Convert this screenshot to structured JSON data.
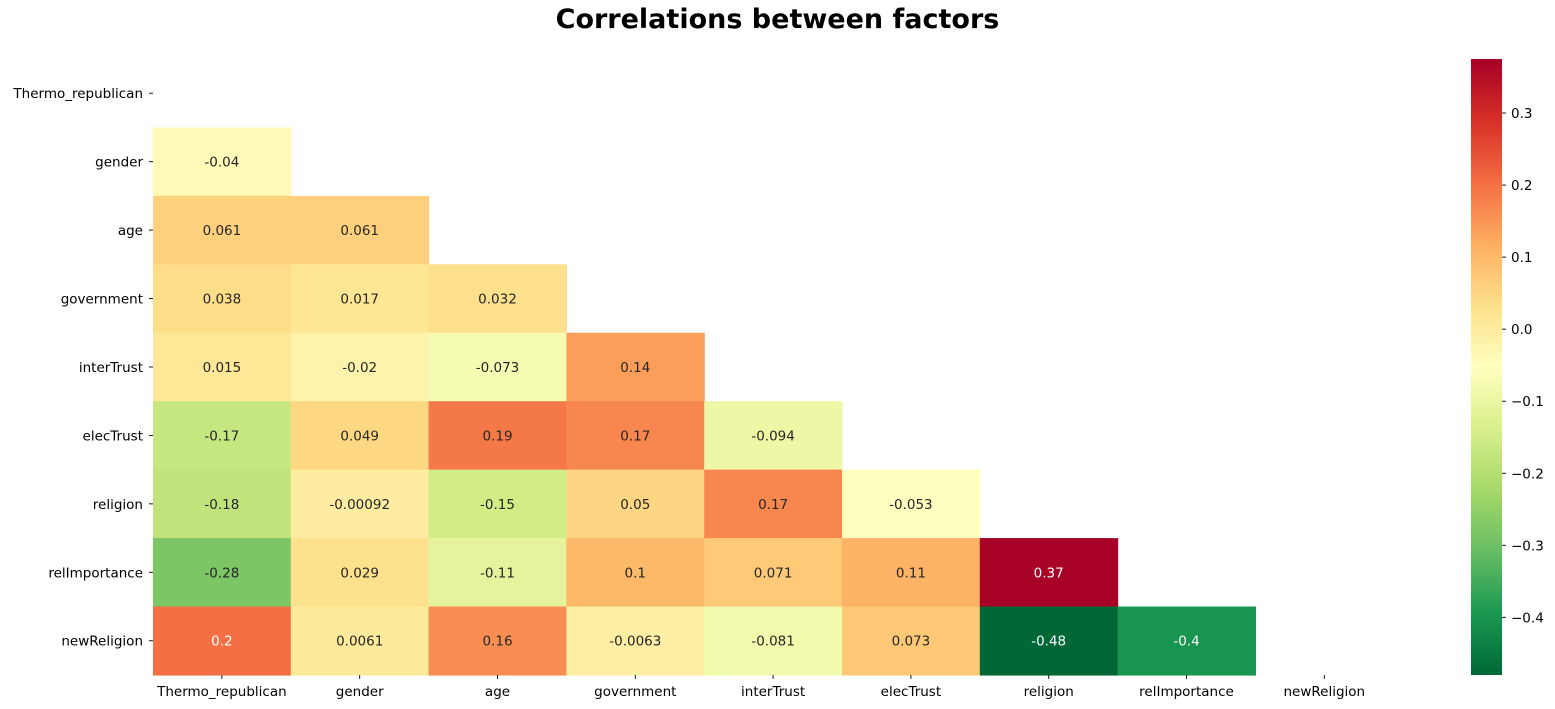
{
  "chart_data": {
    "type": "heatmap",
    "title": "Correlations between factors",
    "xlabel": "",
    "ylabel": "",
    "x_categories": [
      "Thermo_republican",
      "gender",
      "age",
      "government",
      "interTrust",
      "elecTrust",
      "religion",
      "relImportance",
      "newReligion"
    ],
    "y_categories": [
      "Thermo_republican",
      "gender",
      "age",
      "government",
      "interTrust",
      "elecTrust",
      "religion",
      "relImportance",
      "newReligion"
    ],
    "mask": "upper triangle including diagonal",
    "cells": [
      {
        "row": "gender",
        "col": "Thermo_republican",
        "value": -0.04,
        "label": "-0.04"
      },
      {
        "row": "age",
        "col": "Thermo_republican",
        "value": 0.061,
        "label": "0.061"
      },
      {
        "row": "age",
        "col": "gender",
        "value": 0.061,
        "label": "0.061"
      },
      {
        "row": "government",
        "col": "Thermo_republican",
        "value": 0.038,
        "label": "0.038"
      },
      {
        "row": "government",
        "col": "gender",
        "value": 0.017,
        "label": "0.017"
      },
      {
        "row": "government",
        "col": "age",
        "value": 0.032,
        "label": "0.032"
      },
      {
        "row": "interTrust",
        "col": "Thermo_republican",
        "value": 0.015,
        "label": "0.015"
      },
      {
        "row": "interTrust",
        "col": "gender",
        "value": -0.02,
        "label": "-0.02"
      },
      {
        "row": "interTrust",
        "col": "age",
        "value": -0.073,
        "label": "-0.073"
      },
      {
        "row": "interTrust",
        "col": "government",
        "value": 0.14,
        "label": "0.14"
      },
      {
        "row": "elecTrust",
        "col": "Thermo_republican",
        "value": -0.17,
        "label": "-0.17"
      },
      {
        "row": "elecTrust",
        "col": "gender",
        "value": 0.049,
        "label": "0.049"
      },
      {
        "row": "elecTrust",
        "col": "age",
        "value": 0.19,
        "label": "0.19"
      },
      {
        "row": "elecTrust",
        "col": "government",
        "value": 0.17,
        "label": "0.17"
      },
      {
        "row": "elecTrust",
        "col": "interTrust",
        "value": -0.094,
        "label": "-0.094"
      },
      {
        "row": "religion",
        "col": "Thermo_republican",
        "value": -0.18,
        "label": "-0.18"
      },
      {
        "row": "religion",
        "col": "gender",
        "value": -0.00092,
        "label": "-0.00092"
      },
      {
        "row": "religion",
        "col": "age",
        "value": -0.15,
        "label": "-0.15"
      },
      {
        "row": "religion",
        "col": "government",
        "value": 0.05,
        "label": "0.05"
      },
      {
        "row": "religion",
        "col": "interTrust",
        "value": 0.17,
        "label": "0.17"
      },
      {
        "row": "religion",
        "col": "elecTrust",
        "value": -0.053,
        "label": "-0.053"
      },
      {
        "row": "relImportance",
        "col": "Thermo_republican",
        "value": -0.28,
        "label": "-0.28"
      },
      {
        "row": "relImportance",
        "col": "gender",
        "value": 0.029,
        "label": "0.029"
      },
      {
        "row": "relImportance",
        "col": "age",
        "value": -0.11,
        "label": "-0.11"
      },
      {
        "row": "relImportance",
        "col": "government",
        "value": 0.1,
        "label": "0.1"
      },
      {
        "row": "relImportance",
        "col": "interTrust",
        "value": 0.071,
        "label": "0.071"
      },
      {
        "row": "relImportance",
        "col": "elecTrust",
        "value": 0.11,
        "label": "0.11"
      },
      {
        "row": "relImportance",
        "col": "religion",
        "value": 0.37,
        "label": "0.37"
      },
      {
        "row": "newReligion",
        "col": "Thermo_republican",
        "value": 0.2,
        "label": "0.2"
      },
      {
        "row": "newReligion",
        "col": "gender",
        "value": 0.0061,
        "label": "0.0061"
      },
      {
        "row": "newReligion",
        "col": "age",
        "value": 0.16,
        "label": "0.16"
      },
      {
        "row": "newReligion",
        "col": "government",
        "value": -0.0063,
        "label": "-0.0063"
      },
      {
        "row": "newReligion",
        "col": "interTrust",
        "value": -0.081,
        "label": "-0.081"
      },
      {
        "row": "newReligion",
        "col": "elecTrust",
        "value": 0.073,
        "label": "0.073"
      },
      {
        "row": "newReligion",
        "col": "religion",
        "value": -0.48,
        "label": "-0.48"
      },
      {
        "row": "newReligion",
        "col": "relImportance",
        "value": -0.4,
        "label": "-0.4"
      }
    ],
    "colormap": "RdYlGn_r",
    "vmin": -0.48,
    "vmax": 0.375,
    "colorbar": {
      "placement": "right",
      "ticks": [
        0.3,
        0.2,
        0.1,
        0.0,
        -0.1,
        -0.2,
        -0.3,
        -0.4
      ],
      "tick_labels": [
        "0.3",
        "0.2",
        "0.1",
        "0.0",
        "−0.1",
        "−0.2",
        "−0.3",
        "−0.4"
      ]
    },
    "grid": false
  }
}
